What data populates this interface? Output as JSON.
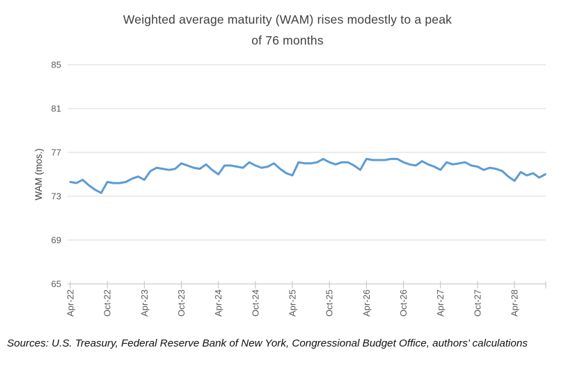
{
  "title_lines": [
    "Weighted average maturity (WAM) rises modestly to a peak",
    "of 76 months"
  ],
  "footer": "Sources: U.S. Treasury, Federal Reserve Bank of New York, Congressional Budget Office, authors’ calculations",
  "colors": {
    "line": "#5B9BD5",
    "gridline": "#D9D9D9",
    "axis": "#BFBFBF",
    "tick_label": "#595959",
    "title": "#404040"
  },
  "chart_data": {
    "type": "line",
    "title": "Weighted average maturity (WAM) rises modestly to a peak of 76 months",
    "xlabel": "",
    "ylabel": "WAM (mos.)",
    "ylim": [
      65,
      85
    ],
    "yticks": [
      65,
      69,
      73,
      77,
      81,
      85
    ],
    "grid": "horizontal",
    "legend": "none",
    "xtick_labels": [
      "Apr-22",
      "Oct-22",
      "Apr-23",
      "Oct-23",
      "Apr-24",
      "Oct-24",
      "Apr-25",
      "Oct-25",
      "Apr-26",
      "Oct-26",
      "Apr-27",
      "Oct-27",
      "Apr-28"
    ],
    "xtick_every": 6,
    "categories": [
      "Apr-22",
      "May-22",
      "Jun-22",
      "Jul-22",
      "Aug-22",
      "Sep-22",
      "Oct-22",
      "Nov-22",
      "Dec-22",
      "Jan-23",
      "Feb-23",
      "Mar-23",
      "Apr-23",
      "May-23",
      "Jun-23",
      "Jul-23",
      "Aug-23",
      "Sep-23",
      "Oct-23",
      "Nov-23",
      "Dec-23",
      "Jan-24",
      "Feb-24",
      "Mar-24",
      "Apr-24",
      "May-24",
      "Jun-24",
      "Jul-24",
      "Aug-24",
      "Sep-24",
      "Oct-24",
      "Nov-24",
      "Dec-24",
      "Jan-25",
      "Feb-25",
      "Mar-25",
      "Apr-25",
      "May-25",
      "Jun-25",
      "Jul-25",
      "Aug-25",
      "Sep-25",
      "Oct-25",
      "Nov-25",
      "Dec-25",
      "Jan-26",
      "Feb-26",
      "Mar-26",
      "Apr-26",
      "May-26",
      "Jun-26",
      "Jul-26",
      "Aug-26",
      "Sep-26",
      "Oct-26",
      "Nov-26",
      "Dec-26",
      "Jan-27",
      "Feb-27",
      "Mar-27",
      "Apr-27",
      "May-27",
      "Jun-27",
      "Jul-27",
      "Aug-27",
      "Sep-27",
      "Oct-27",
      "Nov-27",
      "Dec-27",
      "Jan-28",
      "Feb-28",
      "Mar-28",
      "Apr-28",
      "May-28",
      "Jun-28",
      "Jul-28",
      "Aug-28",
      "Sep-28"
    ],
    "series": [
      {
        "name": "WAM",
        "color": "#5B9BD5",
        "values": [
          74.3,
          74.2,
          74.5,
          74.0,
          73.6,
          73.3,
          74.3,
          74.2,
          74.2,
          74.3,
          74.6,
          74.8,
          74.5,
          75.3,
          75.6,
          75.5,
          75.4,
          75.5,
          76.0,
          75.8,
          75.6,
          75.5,
          75.9,
          75.4,
          75.0,
          75.8,
          75.8,
          75.7,
          75.6,
          76.1,
          75.8,
          75.6,
          75.7,
          76.0,
          75.5,
          75.1,
          74.9,
          76.1,
          76.0,
          76.0,
          76.1,
          76.4,
          76.1,
          75.9,
          76.1,
          76.1,
          75.8,
          75.4,
          76.4,
          76.3,
          76.3,
          76.3,
          76.4,
          76.4,
          76.1,
          75.9,
          75.8,
          76.2,
          75.9,
          75.7,
          75.4,
          76.1,
          75.9,
          76.0,
          76.1,
          75.8,
          75.7,
          75.4,
          75.6,
          75.5,
          75.3,
          74.8,
          74.4,
          75.2,
          74.9,
          75.1,
          74.7,
          75.0
        ]
      }
    ]
  }
}
